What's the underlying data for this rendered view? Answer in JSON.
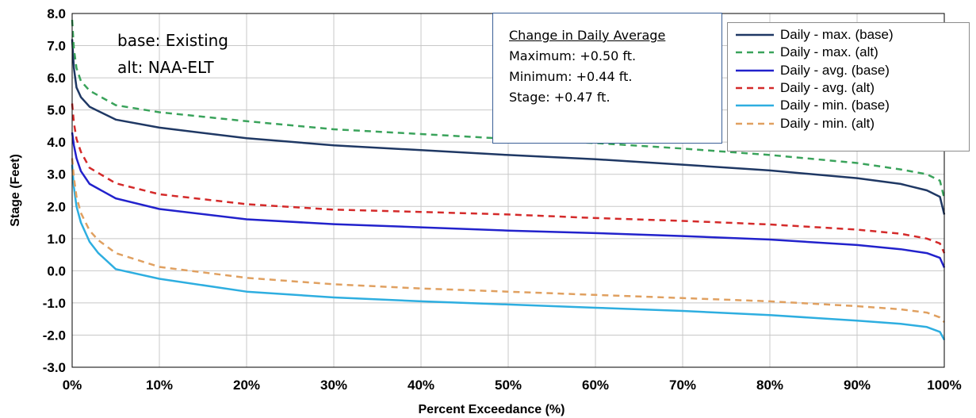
{
  "notes": {
    "base": "base: Existing",
    "alt": "alt: NAA-ELT"
  },
  "infobox": {
    "title": "Change in Daily Average",
    "maximum": "Maximum: +0.50 ft.",
    "minimum": "Minimum: +0.44 ft.",
    "stage": "Stage: +0.47 ft."
  },
  "chart_data": {
    "type": "line",
    "xlabel": "Percent Exceedance (%)",
    "ylabel": "Stage (Feet)",
    "xlim": [
      0,
      100
    ],
    "ylim": [
      -3,
      8
    ],
    "grid": true,
    "legend_position": "top-right",
    "x_ticks": [
      "0%",
      "10%",
      "20%",
      "30%",
      "40%",
      "50%",
      "60%",
      "70%",
      "80%",
      "90%",
      "100%"
    ],
    "y_ticks": [
      "-3.0",
      "-2.0",
      "-1.0",
      "0.0",
      "1.0",
      "2.0",
      "3.0",
      "4.0",
      "5.0",
      "6.0",
      "7.0",
      "8.0"
    ],
    "series": [
      {
        "name": "Daily - max. (base)",
        "color": "#1f3864",
        "dash": "solid",
        "x": [
          0,
          0.2,
          0.5,
          1,
          2,
          5,
          10,
          20,
          30,
          40,
          50,
          60,
          70,
          80,
          90,
          95,
          98,
          99.5,
          100
        ],
        "y": [
          7.2,
          6.3,
          5.7,
          5.4,
          5.1,
          4.7,
          4.45,
          4.12,
          3.9,
          3.75,
          3.6,
          3.47,
          3.3,
          3.12,
          2.88,
          2.7,
          2.5,
          2.3,
          1.75
        ]
      },
      {
        "name": "Daily - max. (alt)",
        "color": "#3aa35b",
        "dash": "dashed",
        "x": [
          0,
          0.2,
          0.5,
          1,
          2,
          5,
          10,
          20,
          30,
          40,
          50,
          60,
          70,
          80,
          90,
          95,
          98,
          99.5,
          100
        ],
        "y": [
          7.8,
          6.9,
          6.3,
          5.9,
          5.6,
          5.15,
          4.93,
          4.65,
          4.4,
          4.25,
          4.1,
          3.97,
          3.8,
          3.6,
          3.35,
          3.15,
          3.0,
          2.8,
          2.25
        ]
      },
      {
        "name": "Daily - avg. (base)",
        "color": "#2222cc",
        "dash": "solid",
        "x": [
          0,
          0.2,
          0.5,
          1,
          2,
          5,
          10,
          20,
          30,
          40,
          50,
          60,
          70,
          80,
          90,
          95,
          98,
          99.5,
          100
        ],
        "y": [
          4.3,
          3.9,
          3.5,
          3.1,
          2.7,
          2.25,
          1.92,
          1.6,
          1.45,
          1.35,
          1.25,
          1.17,
          1.08,
          0.97,
          0.8,
          0.67,
          0.55,
          0.4,
          0.1
        ]
      },
      {
        "name": "Daily - avg. (alt)",
        "color": "#d42a2a",
        "dash": "dashed",
        "x": [
          0,
          0.2,
          0.5,
          1,
          2,
          5,
          10,
          20,
          30,
          40,
          50,
          60,
          70,
          80,
          90,
          95,
          98,
          99.5,
          100
        ],
        "y": [
          5.2,
          4.6,
          4.1,
          3.7,
          3.2,
          2.72,
          2.38,
          2.07,
          1.9,
          1.83,
          1.75,
          1.64,
          1.55,
          1.44,
          1.28,
          1.15,
          1.0,
          0.85,
          0.55
        ]
      },
      {
        "name": "Daily - min. (base)",
        "color": "#2eaee0",
        "dash": "solid",
        "x": [
          0,
          0.2,
          0.5,
          1,
          2,
          3,
          5,
          10,
          20,
          30,
          40,
          50,
          60,
          70,
          80,
          90,
          95,
          98,
          99.5,
          100
        ],
        "y": [
          3.3,
          2.6,
          2.0,
          1.5,
          0.9,
          0.55,
          0.05,
          -0.25,
          -0.65,
          -0.83,
          -0.95,
          -1.05,
          -1.15,
          -1.25,
          -1.38,
          -1.55,
          -1.65,
          -1.75,
          -1.9,
          -2.15
        ]
      },
      {
        "name": "Daily - min. (alt)",
        "color": "#e0a060",
        "dash": "dashed",
        "x": [
          0,
          0.2,
          0.5,
          1,
          2,
          3,
          5,
          10,
          20,
          30,
          40,
          50,
          60,
          70,
          80,
          90,
          95,
          98,
          99.5,
          100
        ],
        "y": [
          3.5,
          2.9,
          2.3,
          1.8,
          1.25,
          0.95,
          0.55,
          0.12,
          -0.22,
          -0.42,
          -0.55,
          -0.65,
          -0.75,
          -0.85,
          -0.95,
          -1.1,
          -1.2,
          -1.3,
          -1.45,
          -1.6
        ]
      }
    ]
  }
}
